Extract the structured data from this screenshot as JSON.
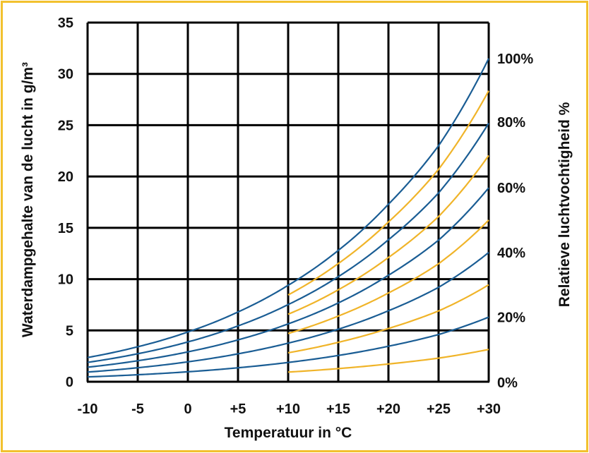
{
  "chart_data": {
    "type": "line",
    "title": "",
    "xlabel": "Temperatuur in °C",
    "ylabel": "Waterdampgehalte van de lucht in g/m³",
    "y2label": "Relatieve luchtvochtigheid %",
    "xlim": [
      -10,
      30
    ],
    "ylim": [
      0,
      35
    ],
    "x_ticks": [
      -10,
      -5,
      0,
      5,
      10,
      15,
      20,
      25,
      30
    ],
    "x_tick_labels": [
      "-10",
      "-5",
      "0",
      "+5",
      "+10",
      "+15",
      "+20",
      "+25",
      "+30"
    ],
    "y_ticks": [
      0,
      5,
      10,
      15,
      20,
      25,
      30,
      35
    ],
    "y_tick_labels": [
      "0",
      "5",
      "10",
      "15",
      "20",
      "25",
      "30",
      "35"
    ],
    "y2_tick_labels": [
      {
        "label": "100%",
        "value": 31.5
      },
      {
        "label": "80%",
        "value": 25.3
      },
      {
        "label": "60%",
        "value": 18.9
      },
      {
        "label": "40%",
        "value": 12.6
      },
      {
        "label": "20%",
        "value": 6.3
      },
      {
        "label": "0%",
        "value": 0
      }
    ],
    "grid": true,
    "saturation_curve": {
      "x": [
        -10,
        -5,
        0,
        5,
        10,
        15,
        20,
        25,
        30
      ],
      "y": [
        2.36,
        3.41,
        4.85,
        6.8,
        9.4,
        12.8,
        17.3,
        23.0,
        31.5
      ]
    },
    "series": [
      {
        "name": "100%",
        "rh": 1.0,
        "color": "#1a5d94",
        "x_start": -10
      },
      {
        "name": "90%",
        "rh": 0.9,
        "color": "#f0b429",
        "x_start": 10
      },
      {
        "name": "80%",
        "rh": 0.8,
        "color": "#1a5d94",
        "x_start": -10
      },
      {
        "name": "70%",
        "rh": 0.7,
        "color": "#f0b429",
        "x_start": 10
      },
      {
        "name": "60%",
        "rh": 0.6,
        "color": "#1a5d94",
        "x_start": -10
      },
      {
        "name": "50%",
        "rh": 0.5,
        "color": "#f0b429",
        "x_start": 10
      },
      {
        "name": "40%",
        "rh": 0.4,
        "color": "#1a5d94",
        "x_start": -10
      },
      {
        "name": "30%",
        "rh": 0.3,
        "color": "#f0b429",
        "x_start": 10
      },
      {
        "name": "20%",
        "rh": 0.2,
        "color": "#1a5d94",
        "x_start": -10
      },
      {
        "name": "10%",
        "rh": 0.1,
        "color": "#f0b429",
        "x_start": 10
      }
    ],
    "colors": {
      "frame": "#f2c12e",
      "grid": "#000000",
      "blue": "#1a5d94",
      "yellow": "#f0b429"
    }
  }
}
